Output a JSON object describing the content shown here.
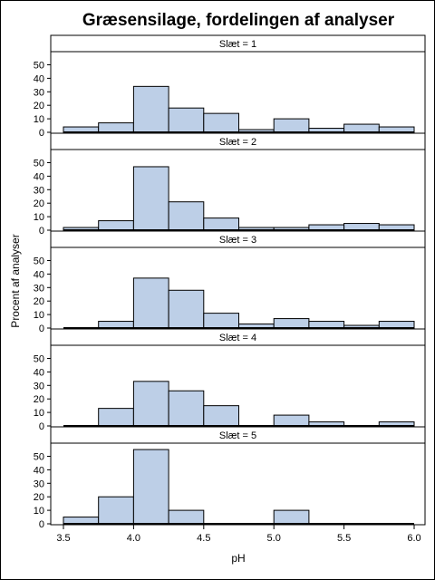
{
  "chart_data": {
    "type": "bar",
    "title": "Græsensilage, fordelingen af analyser",
    "xlabel": "pH",
    "ylabel": "Procent af analyser",
    "xlim": [
      3.5,
      6.0
    ],
    "xticks": [
      "3.5",
      "4.0",
      "4.5",
      "5.0",
      "5.5",
      "6.0"
    ],
    "xtick_values": [
      3.5,
      4.0,
      4.5,
      5.0,
      5.5,
      6.0
    ],
    "ylim": [
      0,
      60
    ],
    "yticks": [
      "0",
      "10",
      "20",
      "30",
      "40",
      "50"
    ],
    "ytick_values": [
      0,
      10,
      20,
      30,
      40,
      50
    ],
    "bin_edges": [
      3.5,
      3.75,
      4.0,
      4.25,
      4.5,
      4.75,
      5.0,
      5.25,
      5.5,
      5.75,
      6.0
    ],
    "bar_color": "#bdcfe7",
    "grid": false,
    "panels": [
      {
        "label": "Slæt = 1",
        "values": [
          4,
          7,
          34,
          18,
          14,
          2,
          10,
          3,
          6,
          4
        ]
      },
      {
        "label": "Slæt = 2",
        "values": [
          2,
          7,
          47,
          21,
          9,
          2,
          2,
          4,
          5,
          4
        ]
      },
      {
        "label": "Slæt = 3",
        "values": [
          0,
          5,
          37,
          28,
          11,
          3,
          7,
          5,
          2,
          5
        ]
      },
      {
        "label": "Slæt = 4",
        "values": [
          0,
          13,
          33,
          26,
          15,
          0,
          8,
          3,
          0,
          3
        ]
      },
      {
        "label": "Slæt = 5",
        "values": [
          5,
          20,
          55,
          10,
          0,
          0,
          10,
          0,
          0,
          0
        ]
      }
    ]
  }
}
